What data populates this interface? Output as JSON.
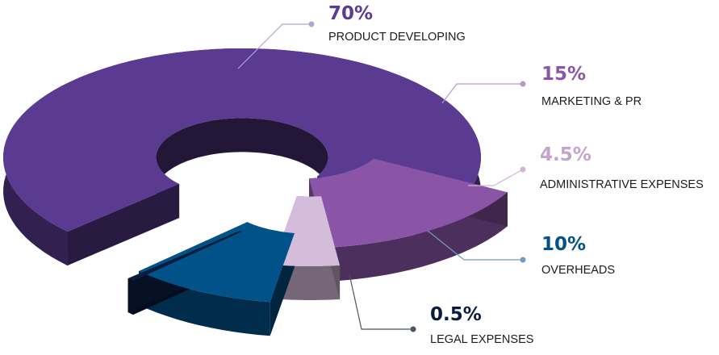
{
  "chart_data": {
    "type": "pie",
    "style": "3d-exploded-donut",
    "title": "",
    "categories": [
      "PRODUCT DEVELOPING",
      "MARKETING & PR",
      "ADMINISTRATIVE EXPENSES",
      "OVERHEADS",
      "LEGAL EXPENSES"
    ],
    "values": [
      70,
      15,
      4.5,
      10,
      0.5
    ],
    "value_labels": [
      "70%",
      "15%",
      "4.5%",
      "10%",
      "0.5%"
    ],
    "colors": [
      "#5b3a92",
      "#8b55a7",
      "#d4bcdb",
      "#02528a",
      "#0c1c3e"
    ],
    "label_colors": [
      "#5b3a92",
      "#8b55a7",
      "#c3a4cc",
      "#02528a",
      "#0c1c3e"
    ],
    "leader_colors": [
      "#b7a2d3",
      "#b899c8",
      "#cdb5d3",
      "#6f9ec2",
      "#4b5563"
    ],
    "legend_placement": "labels-with-leader-lines"
  }
}
